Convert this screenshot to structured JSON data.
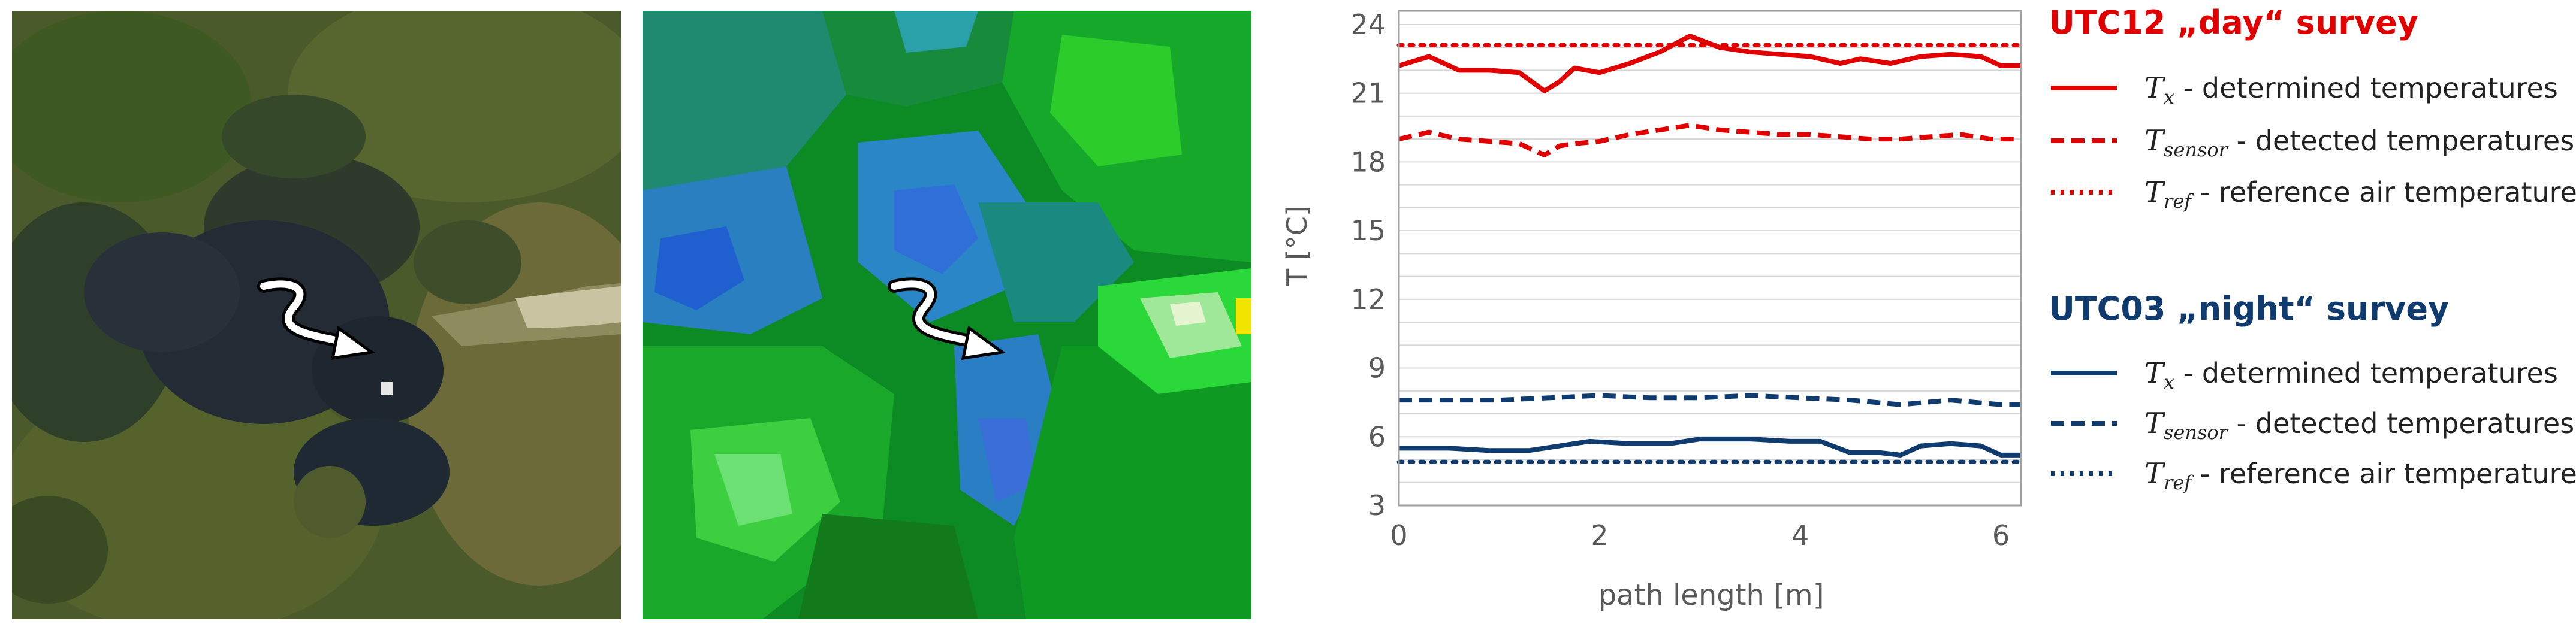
{
  "colors": {
    "day": "#e00000",
    "night": "#0f3b6e",
    "grid": "#d6d6d6",
    "axis_text": "#595959"
  },
  "panels": [
    {
      "name": "aerial-photo-panel",
      "icon": "path-arrow-icon"
    },
    {
      "name": "thermal-map-panel",
      "icon": "path-arrow-icon"
    }
  ],
  "legend": {
    "day_title": "UTC12 „day“ survey",
    "night_title": "UTC03 „night“ survey",
    "items": [
      {
        "symbol": "T",
        "sub": "x",
        "desc": " - determined temperatures"
      },
      {
        "symbol": "T",
        "sub": "sensor",
        "desc": " - detected temperatures"
      },
      {
        "symbol": "T",
        "sub": "ref",
        "desc": "  - reference air temperature"
      }
    ]
  },
  "chart_data": {
    "type": "line",
    "xlabel": "path length [m]",
    "ylabel": "T [°C]",
    "xlim": [
      0,
      6.2
    ],
    "ylim": [
      3,
      24.6
    ],
    "xticks": [
      0,
      2,
      4,
      6
    ],
    "yticks": [
      3,
      6,
      9,
      12,
      15,
      18,
      21,
      24
    ],
    "grid": true,
    "series": [
      {
        "name": "UTC12 day T_x - determined temperatures",
        "group": "day",
        "style": "solid",
        "x": [
          0,
          0.3,
          0.6,
          0.9,
          1.2,
          1.45,
          1.6,
          1.75,
          2.0,
          2.3,
          2.6,
          2.9,
          3.2,
          3.5,
          3.8,
          4.1,
          4.4,
          4.6,
          4.9,
          5.2,
          5.5,
          5.8,
          6.0,
          6.2
        ],
        "y": [
          22.2,
          22.6,
          22.0,
          22.0,
          21.9,
          21.1,
          21.5,
          22.1,
          21.9,
          22.3,
          22.8,
          23.5,
          23.0,
          22.8,
          22.7,
          22.6,
          22.3,
          22.5,
          22.3,
          22.6,
          22.7,
          22.6,
          22.2,
          22.2
        ]
      },
      {
        "name": "UTC12 day T_sensor - detected temperatures",
        "group": "day",
        "style": "dashed",
        "x": [
          0,
          0.3,
          0.6,
          0.9,
          1.2,
          1.45,
          1.6,
          1.75,
          2.0,
          2.3,
          2.6,
          2.9,
          3.2,
          3.5,
          3.8,
          4.1,
          4.4,
          4.7,
          5.0,
          5.3,
          5.6,
          5.9,
          6.2
        ],
        "y": [
          19.0,
          19.3,
          19.0,
          18.9,
          18.8,
          18.3,
          18.7,
          18.8,
          18.9,
          19.2,
          19.4,
          19.6,
          19.4,
          19.3,
          19.2,
          19.2,
          19.1,
          19.0,
          19.0,
          19.1,
          19.2,
          19.0,
          19.0
        ]
      },
      {
        "name": "UTC12 day T_ref - reference air temperature",
        "group": "day",
        "style": "dotted",
        "x": [
          0,
          6.2
        ],
        "y": [
          23.1,
          23.1
        ]
      },
      {
        "name": "UTC03 night T_x - determined temperatures",
        "group": "night",
        "style": "solid",
        "x": [
          0,
          0.5,
          0.9,
          1.3,
          1.6,
          1.9,
          2.3,
          2.7,
          3.0,
          3.5,
          3.9,
          4.2,
          4.5,
          4.8,
          5.0,
          5.2,
          5.5,
          5.8,
          6.0,
          6.2
        ],
        "y": [
          5.5,
          5.5,
          5.4,
          5.4,
          5.6,
          5.8,
          5.7,
          5.7,
          5.9,
          5.9,
          5.8,
          5.8,
          5.3,
          5.3,
          5.2,
          5.6,
          5.7,
          5.6,
          5.2,
          5.2
        ]
      },
      {
        "name": "UTC03 night T_sensor - detected temperatures",
        "group": "night",
        "style": "dashed",
        "x": [
          0,
          0.5,
          1.0,
          1.5,
          2.0,
          2.5,
          3.0,
          3.5,
          4.0,
          4.5,
          5.0,
          5.5,
          6.0,
          6.2
        ],
        "y": [
          7.6,
          7.6,
          7.6,
          7.7,
          7.8,
          7.7,
          7.7,
          7.8,
          7.7,
          7.6,
          7.4,
          7.6,
          7.4,
          7.4
        ]
      },
      {
        "name": "UTC03 night T_ref - reference air temperature",
        "group": "night",
        "style": "dotted",
        "x": [
          0,
          6.2
        ],
        "y": [
          4.9,
          4.9
        ]
      }
    ]
  }
}
